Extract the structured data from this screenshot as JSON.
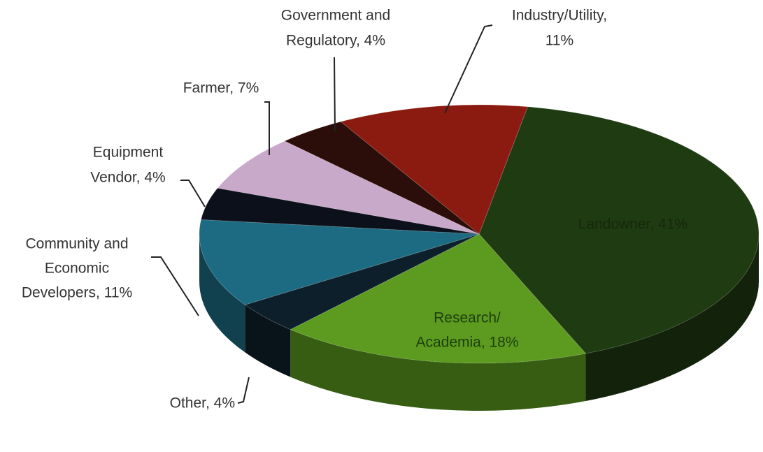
{
  "chart_data": {
    "type": "pie3d",
    "labels": [
      [
        "Landowner, 41%"
      ],
      [
        "Research/",
        "Academia, 18%"
      ],
      [
        "Other, 4%"
      ],
      [
        "Community and",
        "Economic",
        "Developers, 11%"
      ],
      [
        "Equipment",
        "Vendor, 4%"
      ],
      [
        "Farmer, 7%"
      ],
      [
        "Government and",
        "Regulatory, 4%"
      ],
      [
        "Industry/Utility,",
        "11%"
      ]
    ],
    "values": [
      41,
      18,
      4,
      11,
      4,
      7,
      4,
      11
    ],
    "colors": [
      "#1f3b12",
      "#5c9b1f",
      "#0d1f2b",
      "#1d6b82",
      "#0b101b",
      "#c9a9c9",
      "#2b0d09",
      "#8b1b11"
    ]
  }
}
